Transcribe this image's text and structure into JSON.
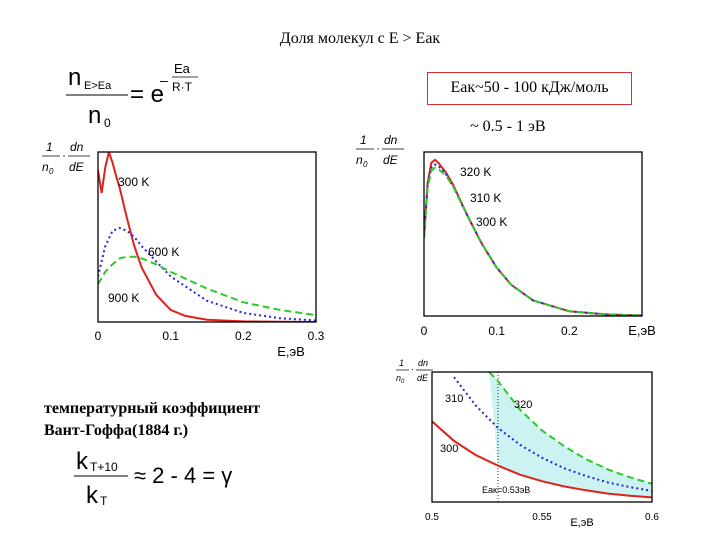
{
  "header": {
    "title": "Доля молекул с E > Eак",
    "box_text": "Eак~50 - 100 кДж/моль",
    "approx_text": "~ 0.5 - 1 эВ"
  },
  "formulas": {
    "boltzmann": {
      "lhs_n": "n",
      "lhs_sub": "E>Ea",
      "denom_n": "n",
      "denom_sub": "0",
      "eq": "= e",
      "exp_minus": "–",
      "exp_num": "Ea",
      "exp_den": "R·T"
    },
    "vant_hoff": {
      "num_k": "k",
      "num_sub": "T+10",
      "den_k": "k",
      "den_sub": "T",
      "rhs": "≈ 2 - 4 = γ"
    }
  },
  "note": {
    "line1": "температурный коэффициент",
    "line2": "Вант-Гоффа(1884 г.)"
  },
  "ylabel": {
    "one": "1",
    "n0": "n",
    "n0_sub": "0",
    "dot": "·",
    "dn": "dn",
    "dE": "dE"
  },
  "colors": {
    "red": "#e0201c",
    "blue": "#2424d8",
    "green": "#2ec82e",
    "fill": "#cdf2f2"
  },
  "chart_data": [
    {
      "type": "line",
      "xlabel": "E,эВ",
      "xlim": [
        0,
        0.3
      ],
      "xticks": [
        "0",
        "0.1",
        "0.2",
        "0.3"
      ],
      "series": [
        {
          "name": "300 K",
          "style": "solid",
          "color": "red",
          "x": [
            0,
            0.005,
            0.01,
            0.015,
            0.02,
            0.025,
            0.03,
            0.04,
            0.05,
            0.06,
            0.08,
            0.1,
            0.12,
            0.15,
            0.2,
            0.25,
            0.3
          ],
          "y": [
            1.0,
            0.85,
            1.02,
            1.12,
            1.05,
            0.96,
            0.88,
            0.68,
            0.5,
            0.36,
            0.18,
            0.08,
            0.04,
            0.015,
            0.004,
            0.001,
            0.0
          ]
        },
        {
          "name": "600 K",
          "style": "dotted",
          "color": "blue",
          "x": [
            0,
            0.005,
            0.01,
            0.02,
            0.03,
            0.04,
            0.05,
            0.06,
            0.08,
            0.1,
            0.15,
            0.2,
            0.25,
            0.3
          ],
          "y": [
            0.3,
            0.4,
            0.5,
            0.6,
            0.62,
            0.6,
            0.56,
            0.5,
            0.4,
            0.3,
            0.14,
            0.06,
            0.025,
            0.01
          ]
        },
        {
          "name": "900 K",
          "style": "dashed",
          "color": "green",
          "x": [
            0,
            0.01,
            0.02,
            0.03,
            0.04,
            0.05,
            0.06,
            0.08,
            0.1,
            0.15,
            0.2,
            0.25,
            0.3
          ],
          "y": [
            0.25,
            0.33,
            0.38,
            0.42,
            0.43,
            0.43,
            0.42,
            0.38,
            0.33,
            0.22,
            0.13,
            0.08,
            0.045
          ]
        }
      ]
    },
    {
      "type": "line",
      "xlabel": "E,эВ",
      "xlim": [
        0,
        0.3
      ],
      "xticks": [
        "0",
        "0.1",
        "0.2"
      ],
      "series": [
        {
          "name": "320 K",
          "style": "solid",
          "color": "red",
          "x": [
            0,
            0.005,
            0.01,
            0.015,
            0.02,
            0.03,
            0.04,
            0.06,
            0.08,
            0.1,
            0.12,
            0.15,
            0.2,
            0.25,
            0.3
          ],
          "y": [
            0.5,
            0.85,
            0.98,
            1.0,
            0.98,
            0.92,
            0.84,
            0.64,
            0.46,
            0.31,
            0.2,
            0.1,
            0.03,
            0.01,
            0.003
          ]
        },
        {
          "name": "310 K",
          "style": "dotted",
          "color": "blue",
          "x": [
            0,
            0.005,
            0.01,
            0.015,
            0.02,
            0.03,
            0.04,
            0.06,
            0.08,
            0.1,
            0.12,
            0.15,
            0.2,
            0.25,
            0.3
          ],
          "y": [
            0.5,
            0.84,
            0.95,
            0.97,
            0.96,
            0.91,
            0.83,
            0.64,
            0.46,
            0.31,
            0.2,
            0.1,
            0.03,
            0.01,
            0.003
          ]
        },
        {
          "name": "300 K",
          "style": "dashed",
          "color": "green",
          "x": [
            0,
            0.005,
            0.01,
            0.015,
            0.02,
            0.03,
            0.04,
            0.06,
            0.08,
            0.1,
            0.12,
            0.15,
            0.2,
            0.25,
            0.3
          ],
          "y": [
            0.5,
            0.82,
            0.93,
            0.95,
            0.94,
            0.9,
            0.83,
            0.64,
            0.46,
            0.31,
            0.2,
            0.1,
            0.03,
            0.01,
            0.003
          ]
        }
      ]
    },
    {
      "type": "area",
      "xlabel": "E,эВ",
      "xlim": [
        0.5,
        0.6
      ],
      "xticks": [
        "0.5",
        "0.55",
        "0.6"
      ],
      "annotation": "Eак=0.53эВ",
      "shade_from": 0.53,
      "series": [
        {
          "name": "300",
          "style": "solid",
          "color": "red",
          "x": [
            0.5,
            0.51,
            0.52,
            0.53,
            0.54,
            0.55,
            0.56,
            0.57,
            0.58,
            0.59,
            0.6
          ],
          "y": [
            0.62,
            0.47,
            0.36,
            0.28,
            0.21,
            0.16,
            0.12,
            0.09,
            0.065,
            0.048,
            0.035
          ]
        },
        {
          "name": "310",
          "style": "dotted",
          "color": "blue",
          "x": [
            0.51,
            0.52,
            0.53,
            0.54,
            0.55,
            0.56,
            0.57,
            0.58,
            0.59,
            0.6
          ],
          "y": [
            0.96,
            0.74,
            0.57,
            0.44,
            0.34,
            0.26,
            0.2,
            0.15,
            0.115,
            0.085
          ]
        },
        {
          "name": "320",
          "style": "dashed",
          "color": "green",
          "x": [
            0.526,
            0.53,
            0.54,
            0.55,
            0.56,
            0.57,
            0.58,
            0.59,
            0.6
          ],
          "y": [
            1.0,
            0.93,
            0.71,
            0.55,
            0.43,
            0.33,
            0.25,
            0.19,
            0.14
          ]
        }
      ]
    }
  ]
}
